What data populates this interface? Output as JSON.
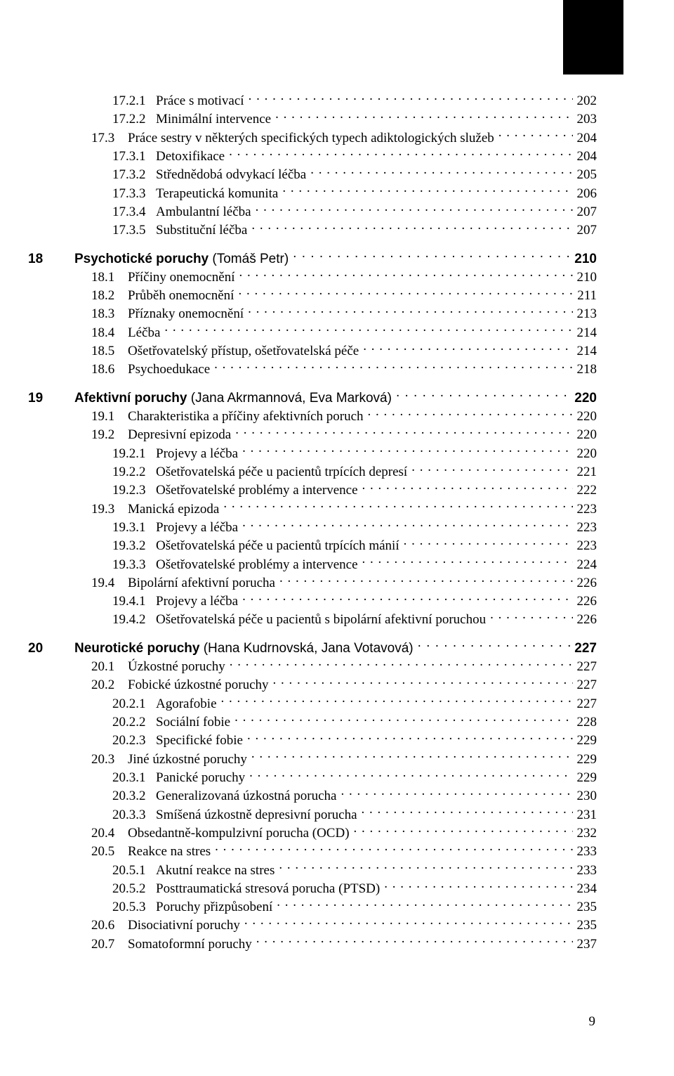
{
  "page_number": "9",
  "entries": [
    {
      "lv": "ss",
      "num": "17.2.1",
      "txt": "Práce s motivací",
      "pg": "202"
    },
    {
      "lv": "ss",
      "num": "17.2.2",
      "txt": "Minimální intervence",
      "pg": "203"
    },
    {
      "lv": "s",
      "num": "17.3",
      "txt": "Práce sestry v některých specifických typech adiktologických služeb",
      "pg": "204"
    },
    {
      "lv": "ss",
      "num": "17.3.1",
      "txt": "Detoxifikace",
      "pg": "204"
    },
    {
      "lv": "ss",
      "num": "17.3.2",
      "txt": "Střednědobá odvykací léčba",
      "pg": "205"
    },
    {
      "lv": "ss",
      "num": "17.3.3",
      "txt": "Terapeutická komunita",
      "pg": "206"
    },
    {
      "lv": "ss",
      "num": "17.3.4",
      "txt": "Ambulantní léčba",
      "pg": "207"
    },
    {
      "lv": "ss",
      "num": "17.3.5",
      "txt": "Substituční léčba",
      "pg": "207"
    },
    {
      "lv": "chap",
      "num": "18",
      "txt": "Psychotické poruchy",
      "auth": "(Tomáš Petr)",
      "pg": "210"
    },
    {
      "lv": "s",
      "num": "18.1",
      "txt": "Příčiny onemocnění",
      "pg": "210"
    },
    {
      "lv": "s",
      "num": "18.2",
      "txt": "Průběh onemocnění",
      "pg": "211"
    },
    {
      "lv": "s",
      "num": "18.3",
      "txt": "Příznaky onemocnění",
      "pg": "213"
    },
    {
      "lv": "s",
      "num": "18.4",
      "txt": "Léčba",
      "pg": "214"
    },
    {
      "lv": "s",
      "num": "18.5",
      "txt": "Ošetřovatelský přístup, ošetřovatelská péče",
      "pg": "214"
    },
    {
      "lv": "s",
      "num": "18.6",
      "txt": "Psychoedukace",
      "pg": "218"
    },
    {
      "lv": "chap",
      "num": "19",
      "txt": "Afektivní poruchy",
      "auth": "(Jana Akrmannová, Eva Marková)",
      "pg": "220"
    },
    {
      "lv": "s",
      "num": "19.1",
      "txt": "Charakteristika a příčiny afektivních poruch",
      "pg": "220"
    },
    {
      "lv": "s",
      "num": "19.2",
      "txt": "Depresivní epizoda",
      "pg": "220"
    },
    {
      "lv": "ss",
      "num": "19.2.1",
      "txt": "Projevy a léčba",
      "pg": "220"
    },
    {
      "lv": "ss",
      "num": "19.2.2",
      "txt": "Ošetřovatelská péče u pacientů trpících depresí",
      "pg": "221"
    },
    {
      "lv": "ss",
      "num": "19.2.3",
      "txt": "Ošetřovatelské problémy a intervence",
      "pg": "222"
    },
    {
      "lv": "s",
      "num": "19.3",
      "txt": "Manická epizoda",
      "pg": "223"
    },
    {
      "lv": "ss",
      "num": "19.3.1",
      "txt": "Projevy a léčba",
      "pg": "223"
    },
    {
      "lv": "ss",
      "num": "19.3.2",
      "txt": "Ošetřovatelská péče u pacientů trpících mánií",
      "pg": "223"
    },
    {
      "lv": "ss",
      "num": "19.3.3",
      "txt": "Ošetřovatelské problémy a intervence",
      "pg": "224"
    },
    {
      "lv": "s",
      "num": "19.4",
      "txt": "Bipolární afektivní porucha",
      "pg": "226"
    },
    {
      "lv": "ss",
      "num": "19.4.1",
      "txt": "Projevy a léčba",
      "pg": "226"
    },
    {
      "lv": "ss",
      "num": "19.4.2",
      "txt": "Ošetřovatelská péče u pacientů s bipolární afektivní poruchou",
      "pg": "226"
    },
    {
      "lv": "chap",
      "num": "20",
      "txt": "Neurotické poruchy",
      "auth": "(Hana Kudrnovská, Jana Votavová)",
      "pg": "227"
    },
    {
      "lv": "s",
      "num": "20.1",
      "txt": "Úzkostné poruchy",
      "pg": "227"
    },
    {
      "lv": "s",
      "num": "20.2",
      "txt": "Fobické úzkostné poruchy",
      "pg": "227"
    },
    {
      "lv": "ss",
      "num": "20.2.1",
      "txt": "Agorafobie",
      "pg": "227"
    },
    {
      "lv": "ss",
      "num": "20.2.2",
      "txt": "Sociální fobie",
      "pg": "228"
    },
    {
      "lv": "ss",
      "num": "20.2.3",
      "txt": "Specifické fobie",
      "pg": "229"
    },
    {
      "lv": "s",
      "num": "20.3",
      "txt": "Jiné úzkostné poruchy",
      "pg": "229"
    },
    {
      "lv": "ss",
      "num": "20.3.1",
      "txt": "Panické poruchy",
      "pg": "229"
    },
    {
      "lv": "ss",
      "num": "20.3.2",
      "txt": "Generalizovaná úzkostná porucha",
      "pg": "230"
    },
    {
      "lv": "ss",
      "num": "20.3.3",
      "txt": "Smíšená úzkostně depresivní porucha",
      "pg": "231"
    },
    {
      "lv": "s",
      "num": "20.4",
      "txt": "Obsedantně-kompulzivní porucha (OCD)",
      "pg": "232"
    },
    {
      "lv": "s",
      "num": "20.5",
      "txt": "Reakce na stres",
      "pg": "233"
    },
    {
      "lv": "ss",
      "num": "20.5.1",
      "txt": "Akutní reakce na stres",
      "pg": "233"
    },
    {
      "lv": "ss",
      "num": "20.5.2",
      "txt": "Posttraumatická stresová porucha (PTSD)",
      "pg": "234"
    },
    {
      "lv": "ss",
      "num": "20.5.3",
      "txt": "Poruchy přizpůsobení",
      "pg": "235"
    },
    {
      "lv": "s",
      "num": "20.6",
      "txt": "Disociativní poruchy",
      "pg": "235"
    },
    {
      "lv": "s",
      "num": "20.7",
      "txt": "Somatoformní poruchy",
      "pg": "237"
    }
  ]
}
